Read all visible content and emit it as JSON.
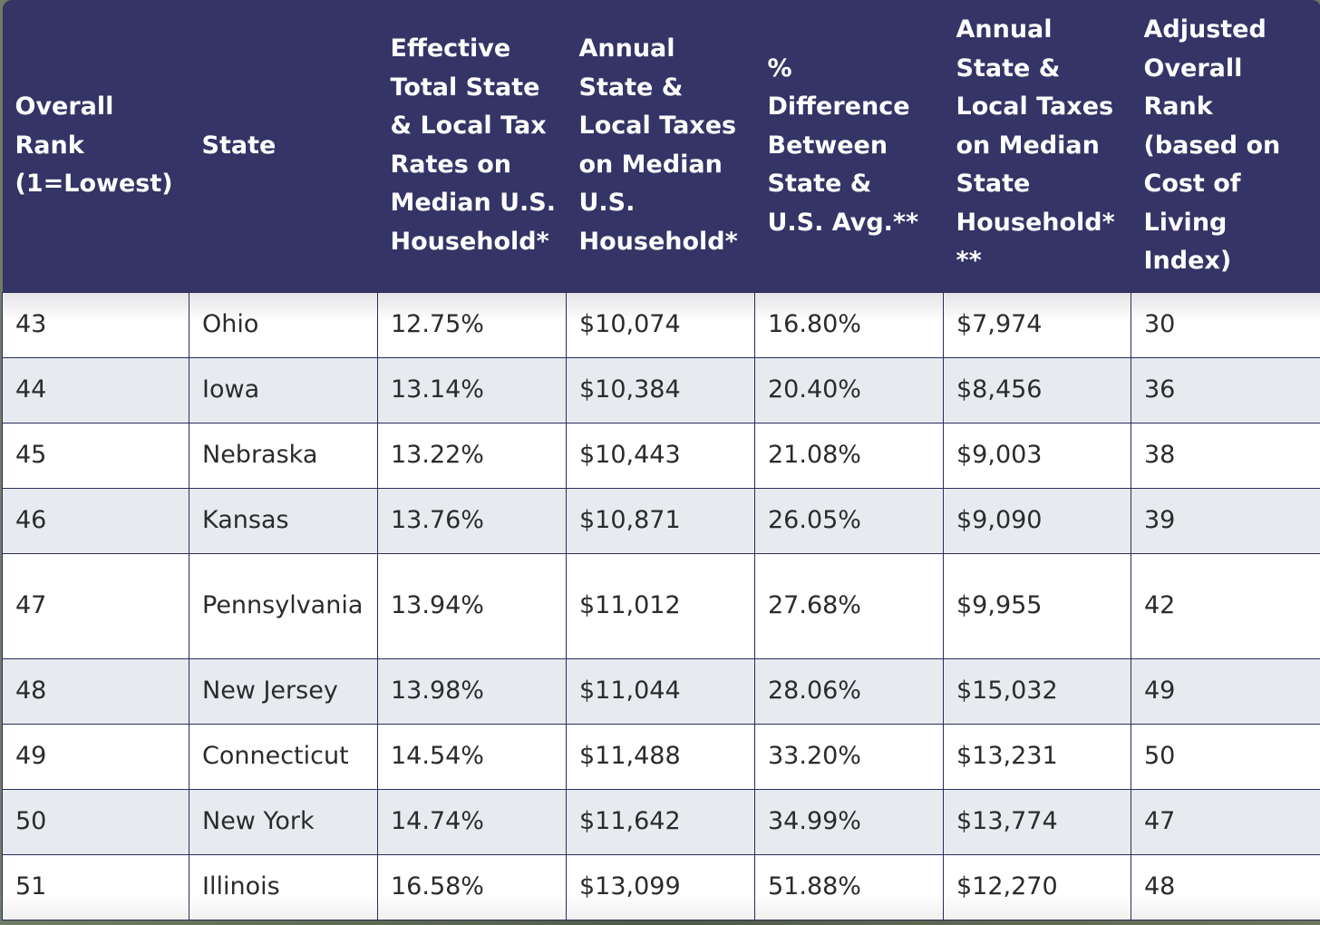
{
  "table": {
    "headers": [
      "Overall Rank (1=Lowest)",
      "State",
      "Effective Total State & Local Tax Rates on Median U.S. Household*",
      "Annual State & Local Taxes on Median U.S. Household*",
      "% Difference Between State & U.S. Avg.**",
      "Annual State & Local Taxes on Median State Household* **",
      "Adjusted Overall Rank (based on Cost of Living Index)"
    ],
    "rows": [
      [
        "43",
        "Ohio",
        "12.75%",
        "$10,074",
        "16.80%",
        "$7,974",
        "30"
      ],
      [
        "44",
        "Iowa",
        "13.14%",
        "$10,384",
        "20.40%",
        "$8,456",
        "36"
      ],
      [
        "45",
        "Nebraska",
        "13.22%",
        "$10,443",
        "21.08%",
        "$9,003",
        "38"
      ],
      [
        "46",
        "Kansas",
        "13.76%",
        "$10,871",
        "26.05%",
        "$9,090",
        "39"
      ],
      [
        "47",
        "Pennsylvania",
        "13.94%",
        "$11,012",
        "27.68%",
        "$9,955",
        "42"
      ],
      [
        "48",
        "New Jersey",
        "13.98%",
        "$11,044",
        "28.06%",
        "$15,032",
        "49"
      ],
      [
        "49",
        "Connecticut",
        "14.54%",
        "$11,488",
        "33.20%",
        "$13,231",
        "50"
      ],
      [
        "50",
        "New York",
        "14.74%",
        "$11,642",
        "34.99%",
        "$13,774",
        "47"
      ],
      [
        "51",
        "Illinois",
        "16.58%",
        "$13,099",
        "51.88%",
        "$12,270",
        "48"
      ]
    ]
  },
  "colors": {
    "header_bg": "#343466",
    "header_text": "#ffffff",
    "row_alt_bg": "#e7ebef",
    "border": "#2c2c5c"
  }
}
